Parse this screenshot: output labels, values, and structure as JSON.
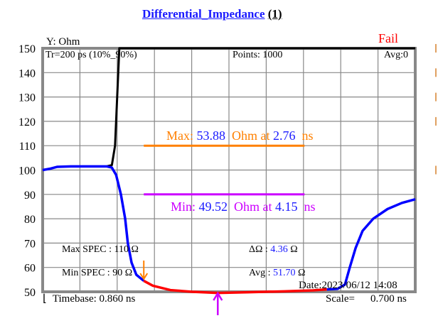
{
  "title": {
    "text": "Differential_Impedance",
    "index": "(1)"
  },
  "status": {
    "text": "Fail",
    "color": "#ff0000"
  },
  "header": {
    "tr": "Tr=200  ps (10%_90%)",
    "points_label": "Points:",
    "points": "1000",
    "avg": "Avg:0"
  },
  "info": {
    "max_spec_label": "Max SPEC :",
    "max_spec": "110 Ω",
    "min_spec_label": "Min  SPEC :",
    "min_spec": "90  Ω",
    "delta_label": "ΔΩ  :",
    "delta_value": "4.36",
    "delta_unit": "Ω",
    "avg_label": "Avg :",
    "avg_value": "51.70",
    "avg_unit": "Ω",
    "date": "Date:2023/06/12 14:08",
    "timebase": "Timebase: 0.860  ns",
    "scale_label": "Scale=",
    "scale": "0.700 ns"
  },
  "markers": {
    "max": {
      "label": "Max:",
      "value": "53.88",
      "unit": "Ohm at",
      "time": "2.76",
      "time_unit": "ns",
      "color": "#ff8000"
    },
    "min": {
      "label": "Min:",
      "value": "49.52",
      "unit": "Ohm at",
      "time": "4.15",
      "time_unit": "ns",
      "color": "#cc00ff"
    }
  },
  "chart_data": {
    "type": "line",
    "ylabel": "Y: Ohm",
    "ylim": [
      50,
      150
    ],
    "xlim": [
      0.86,
      7.86
    ],
    "yticks": [
      "150",
      "140",
      "130",
      "120",
      "110",
      "100",
      "90",
      "80",
      "70",
      "60",
      "50"
    ],
    "grid": true,
    "series": [
      {
        "color": "#000000",
        "points": [
          [
            2.06,
            101.5
          ],
          [
            2.16,
            102
          ],
          [
            2.22,
            110
          ],
          [
            2.26,
            130
          ],
          [
            2.3,
            150
          ],
          [
            7.86,
            150
          ]
        ]
      },
      {
        "color": "#0000ff",
        "points": [
          [
            0.86,
            100
          ],
          [
            0.99,
            100.5
          ],
          [
            1.13,
            101.3
          ],
          [
            1.39,
            101.5
          ],
          [
            2.06,
            101.5
          ],
          [
            2.16,
            101
          ],
          [
            2.24,
            98
          ],
          [
            2.33,
            90
          ],
          [
            2.41,
            80
          ],
          [
            2.46,
            70
          ],
          [
            2.53,
            62
          ],
          [
            2.62,
            57
          ],
          [
            2.76,
            54.5
          ]
        ]
      },
      {
        "color": "#ff0000",
        "points": [
          [
            2.76,
            54.5
          ],
          [
            2.93,
            52.5
          ],
          [
            3.26,
            50.7
          ],
          [
            3.67,
            50.0
          ],
          [
            4.15,
            49.52
          ],
          [
            4.73,
            49.8
          ],
          [
            5.4,
            50.2
          ],
          [
            5.94,
            50.6
          ],
          [
            6.2,
            51
          ]
        ]
      },
      {
        "color": "#0000ff",
        "points": [
          [
            6.2,
            51
          ],
          [
            6.4,
            51.2
          ],
          [
            6.54,
            53
          ],
          [
            6.63,
            60
          ],
          [
            6.74,
            68
          ],
          [
            6.87,
            75
          ],
          [
            7.07,
            80
          ],
          [
            7.34,
            84
          ],
          [
            7.61,
            86.5
          ],
          [
            7.86,
            88
          ]
        ]
      }
    ],
    "limit_lines": [
      {
        "y": 110,
        "x": [
          2.76,
          5.78
        ],
        "color": "#ff8000"
      },
      {
        "y": 90,
        "x": [
          2.76,
          5.78
        ],
        "color": "#cc00ff"
      }
    ]
  }
}
